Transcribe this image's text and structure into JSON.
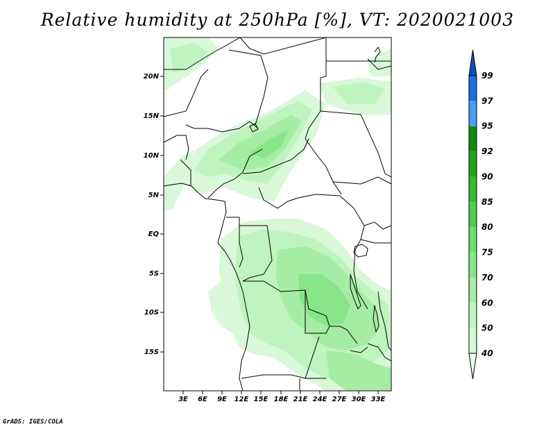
{
  "title": "Relative humidity at 250hPa [%], VT: 2020021003",
  "credit": "GrADS: IGES/COLA",
  "map": {
    "lat_ticks": [
      "20N",
      "15N",
      "10N",
      "5N",
      "EQ",
      "5S",
      "10S",
      "15S"
    ],
    "lon_ticks": [
      "3E",
      "6E",
      "9E",
      "12E",
      "15E",
      "18E",
      "21E",
      "24E",
      "27E",
      "30E",
      "33E"
    ]
  },
  "colorbar": {
    "levels": [
      "40",
      "50",
      "60",
      "70",
      "75",
      "80",
      "85",
      "90",
      "92",
      "95",
      "97",
      "99"
    ],
    "colors": [
      "#f0fdf0",
      "#d5f8d5",
      "#bff3bf",
      "#a5eca5",
      "#88e588",
      "#6edc6e",
      "#4fcf4f",
      "#35bb35",
      "#1ea51e",
      "#128a12",
      "#4a9ef0",
      "#1c6ee0",
      "#0d4fc0"
    ]
  }
}
